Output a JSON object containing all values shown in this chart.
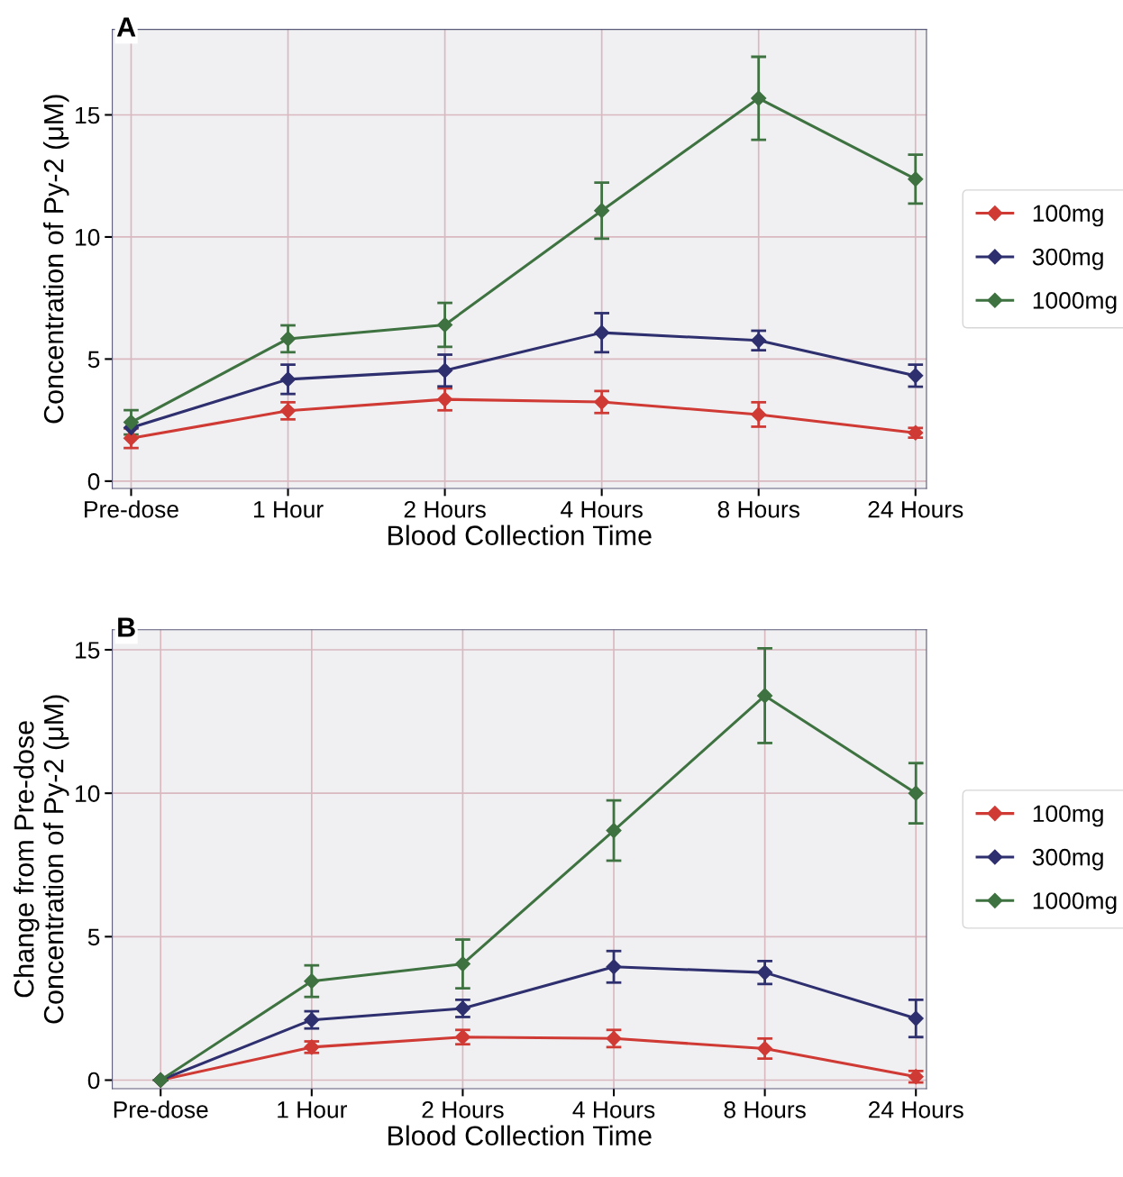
{
  "chart_data": [
    {
      "type": "line",
      "annotations": [
        "A"
      ],
      "xlabel": "Blood Collection Time",
      "ylabel": "Concentration of Py-2 (μM)",
      "categories": [
        "Pre-dose",
        "1 Hour",
        "2 Hours",
        "4 Hours",
        "8 Hours",
        "24 Hours"
      ],
      "ylim": [
        -0.3,
        18.5
      ],
      "yticks": [
        0,
        5,
        10,
        15
      ],
      "grid": true,
      "legend": "right",
      "marker": "diamond",
      "line_style": "solid",
      "series": [
        {
          "name": "100mg",
          "color": "#d03a35",
          "values": [
            1.76,
            2.88,
            3.35,
            3.24,
            2.73,
            1.98
          ],
          "errors": [
            0.4,
            0.35,
            0.45,
            0.45,
            0.5,
            0.2
          ]
        },
        {
          "name": "300mg",
          "color": "#2e2f6e",
          "values": [
            2.19,
            4.17,
            4.53,
            6.08,
            5.76,
            4.32
          ],
          "errors": [
            null,
            0.6,
            0.65,
            0.8,
            0.4,
            0.45
          ]
        },
        {
          "name": "1000mg",
          "color": "#3e7240",
          "values": [
            2.41,
            5.83,
            6.4,
            11.08,
            15.68,
            12.37
          ],
          "errors": [
            0.5,
            0.55,
            0.9,
            1.15,
            1.7,
            1.0
          ]
        }
      ]
    },
    {
      "type": "line",
      "annotations": [
        "B"
      ],
      "xlabel": "Blood Collection Time",
      "ylabel": "Change from Pre-dose\nConcentration of Py-2 (μM)",
      "categories": [
        "Pre-dose",
        "1 Hour",
        "2 Hours",
        "4 Hours",
        "8 Hours",
        "24 Hours"
      ],
      "ylim": [
        -0.3,
        15.7
      ],
      "yticks": [
        0,
        5,
        10,
        15
      ],
      "grid": true,
      "legend": "right",
      "marker": "diamond",
      "line_style": "solid",
      "series": [
        {
          "name": "100mg",
          "color": "#d03a35",
          "values": [
            0,
            1.15,
            1.5,
            1.45,
            1.1,
            0.12
          ],
          "errors": [
            0,
            0.2,
            0.25,
            0.3,
            0.35,
            0.2
          ]
        },
        {
          "name": "300mg",
          "color": "#2e2f6e",
          "values": [
            0,
            2.1,
            2.5,
            3.95,
            3.75,
            2.15
          ],
          "errors": [
            0,
            0.3,
            0.3,
            0.55,
            0.4,
            0.65
          ]
        },
        {
          "name": "1000mg",
          "color": "#3e7240",
          "values": [
            0,
            3.45,
            4.05,
            8.7,
            13.4,
            10.0
          ],
          "errors": [
            0,
            0.55,
            0.85,
            1.05,
            1.65,
            1.05
          ]
        }
      ]
    }
  ]
}
